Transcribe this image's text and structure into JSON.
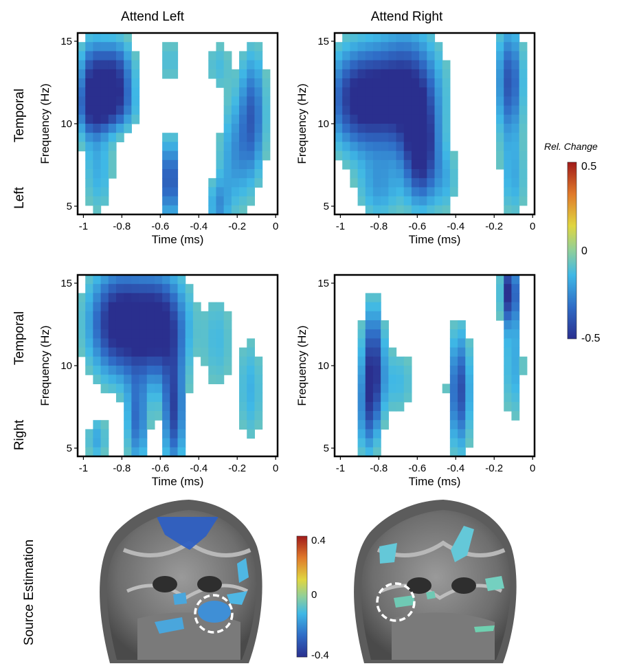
{
  "columns": {
    "left_title": "Attend Left",
    "right_title": "Attend Right"
  },
  "rows": {
    "top_label_1": "Left",
    "top_label_2": "Temporal",
    "bottom_label_1": "Right",
    "bottom_label_2": "Temporal",
    "source_label": "Source Estimation"
  },
  "axes": {
    "ylabel": "Frequency (Hz)",
    "xlabel": "Time (ms)",
    "xticks": [
      "-1",
      "-0.8",
      "-0.6",
      "-0.4",
      "-0.2",
      "0"
    ],
    "yticks": [
      "5",
      "10",
      "15"
    ],
    "xlim": [
      -1.03,
      0.01
    ],
    "ylim": [
      4.5,
      15.5
    ]
  },
  "colorbar_main": {
    "title": "Rel. Change",
    "max": "0.5",
    "mid": "0",
    "min": "-0.5",
    "colors": [
      "#2a2f8e",
      "#2f6cc6",
      "#3fb8e6",
      "#8fcf9a",
      "#e0d640",
      "#e07a2a",
      "#a01a1a"
    ]
  },
  "colorbar_source": {
    "max": "0.4",
    "mid": "0",
    "min": "-0.4"
  },
  "chart_data": [
    {
      "type": "heatmap",
      "panel": "Left Temporal / Attend Left",
      "blobs": [
        {
          "t": -0.84,
          "f": 12.8,
          "st": 0.07,
          "sf": 1.6,
          "v": -0.48
        },
        {
          "t": -0.96,
          "f": 12.2,
          "st": 0.05,
          "sf": 2.0,
          "v": -0.4
        },
        {
          "t": -0.88,
          "f": 10.8,
          "st": 0.1,
          "sf": 1.0,
          "v": -0.28
        },
        {
          "t": -0.55,
          "f": 6.6,
          "st": 0.03,
          "sf": 1.8,
          "v": -0.45
        },
        {
          "t": -0.12,
          "f": 10.6,
          "st": 0.05,
          "sf": 2.8,
          "v": -0.35
        },
        {
          "t": -0.22,
          "f": 8.0,
          "st": 0.06,
          "sf": 2.5,
          "v": -0.22
        },
        {
          "t": -0.3,
          "f": 5.0,
          "st": 0.04,
          "sf": 1.2,
          "v": -0.22
        },
        {
          "t": -0.92,
          "f": 7.0,
          "st": 0.06,
          "sf": 2.0,
          "v": -0.18
        },
        {
          "t": -0.55,
          "f": 13.8,
          "st": 0.05,
          "sf": 1.2,
          "v": -0.14
        },
        {
          "t": -0.3,
          "f": 13.6,
          "st": 0.05,
          "sf": 1.2,
          "v": -0.14
        }
      ]
    },
    {
      "type": "heatmap",
      "panel": "Left Temporal / Attend Right",
      "blobs": [
        {
          "t": -0.9,
          "f": 11.5,
          "st": 0.12,
          "sf": 2.2,
          "v": -0.52
        },
        {
          "t": -0.65,
          "f": 11.8,
          "st": 0.12,
          "sf": 2.6,
          "v": -0.5
        },
        {
          "t": -0.58,
          "f": 8.0,
          "st": 0.06,
          "sf": 2.2,
          "v": -0.45
        },
        {
          "t": -0.12,
          "f": 12.5,
          "st": 0.05,
          "sf": 2.5,
          "v": -0.4
        },
        {
          "t": -0.8,
          "f": 6.0,
          "st": 0.08,
          "sf": 1.5,
          "v": -0.2
        },
        {
          "t": -0.45,
          "f": 6.5,
          "st": 0.05,
          "sf": 1.5,
          "v": -0.15
        },
        {
          "t": -0.1,
          "f": 6.5,
          "st": 0.05,
          "sf": 1.8,
          "v": -0.18
        }
      ]
    },
    {
      "type": "heatmap",
      "panel": "Right Temporal / Attend Left",
      "blobs": [
        {
          "t": -0.82,
          "f": 12.6,
          "st": 0.11,
          "sf": 2.3,
          "v": -0.55
        },
        {
          "t": -0.6,
          "f": 12.4,
          "st": 0.1,
          "sf": 2.3,
          "v": -0.52
        },
        {
          "t": -0.53,
          "f": 7.0,
          "st": 0.04,
          "sf": 2.4,
          "v": -0.42
        },
        {
          "t": -0.72,
          "f": 6.5,
          "st": 0.04,
          "sf": 2.0,
          "v": -0.32
        },
        {
          "t": -0.93,
          "f": 5.5,
          "st": 0.04,
          "sf": 1.0,
          "v": -0.2
        },
        {
          "t": -0.3,
          "f": 11.5,
          "st": 0.06,
          "sf": 2.5,
          "v": -0.15
        },
        {
          "t": -0.13,
          "f": 8.5,
          "st": 0.05,
          "sf": 2.5,
          "v": -0.18
        }
      ]
    },
    {
      "type": "heatmap",
      "panel": "Right Temporal / Attend Right",
      "blobs": [
        {
          "t": -0.83,
          "f": 10.2,
          "st": 0.04,
          "sf": 2.5,
          "v": -0.45
        },
        {
          "t": -0.38,
          "f": 8.5,
          "st": 0.04,
          "sf": 2.6,
          "v": -0.42
        },
        {
          "t": -0.12,
          "f": 14.5,
          "st": 0.03,
          "sf": 1.4,
          "v": -0.5
        },
        {
          "t": -0.7,
          "f": 9.0,
          "st": 0.07,
          "sf": 1.6,
          "v": -0.16
        },
        {
          "t": -0.1,
          "f": 10.0,
          "st": 0.04,
          "sf": 2.5,
          "v": -0.2
        },
        {
          "t": -0.86,
          "f": 7.0,
          "st": 0.04,
          "sf": 2.0,
          "v": -0.25
        }
      ]
    }
  ]
}
